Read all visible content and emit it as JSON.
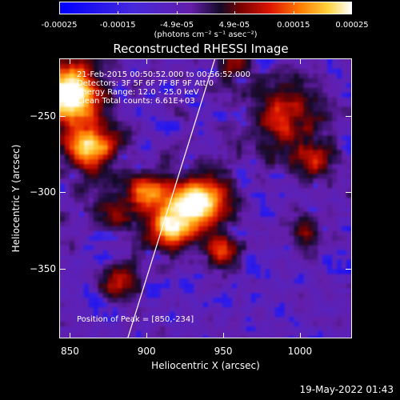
{
  "colorbar": {
    "tick_labels": [
      "-0.00025",
      "-0.00015",
      "-4.9e-05",
      "4.9e-05",
      "0.00015",
      "0.00025"
    ],
    "units": "(photons cm⁻² s⁻¹ asec⁻²)",
    "min": -0.00025,
    "max": 0.00025
  },
  "annotations": {
    "line1": "21-Feb-2015 00:50:52.000 to 00:56:52.000",
    "line2": "Detectors: 3F 5F 6F 7F 8F 9F  Att 0",
    "line3": "Energy Range: 12.0 - 25.0 keV",
    "line4": "Clean    Total counts: 6.61E+03",
    "peak": "Position of Peak = [850,-234]"
  },
  "date_stamp": "19-May-2022 01:43",
  "chart_data": {
    "type": "heatmap",
    "title": "Reconstructed RHESSI Image",
    "xlabel": "Heliocentric X (arcsec)",
    "ylabel": "Heliocentric Y (arcsec)",
    "xlim": [
      843,
      1034
    ],
    "ylim": [
      -396,
      -212
    ],
    "x_ticks": [
      850,
      900,
      950,
      1000
    ],
    "y_ticks": [
      -250,
      -300,
      -350
    ],
    "x_tick_labels": [
      "850",
      "900",
      "950",
      "1000"
    ],
    "y_tick_labels": [
      "−250",
      "−300",
      "−350"
    ],
    "limb_line": {
      "x": [
        887,
        887,
        944
      ],
      "y": [
        -396,
        -396,
        -212
      ]
    },
    "sources": [
      {
        "x": 850,
        "y": -234,
        "intensity": 1.0,
        "sigma": 14
      },
      {
        "x": 863,
        "y": -270,
        "intensity": 0.8,
        "sigma": 12
      },
      {
        "x": 935,
        "y": -307,
        "intensity": 0.95,
        "sigma": 13
      },
      {
        "x": 915,
        "y": -322,
        "intensity": 0.75,
        "sigma": 11
      },
      {
        "x": 900,
        "y": -300,
        "intensity": 0.6,
        "sigma": 9
      },
      {
        "x": 950,
        "y": -340,
        "intensity": 0.55,
        "sigma": 7
      },
      {
        "x": 990,
        "y": -250,
        "intensity": 0.45,
        "sigma": 18
      },
      {
        "x": 1010,
        "y": -280,
        "intensity": 0.35,
        "sigma": 10
      },
      {
        "x": 1005,
        "y": -325,
        "intensity": 0.3,
        "sigma": 9
      },
      {
        "x": 883,
        "y": -360,
        "intensity": 0.45,
        "sigma": 9
      },
      {
        "x": 875,
        "y": -315,
        "intensity": 0.3,
        "sigma": 10
      },
      {
        "x": 955,
        "y": -215,
        "intensity": 0.3,
        "sigma": 8
      }
    ]
  }
}
